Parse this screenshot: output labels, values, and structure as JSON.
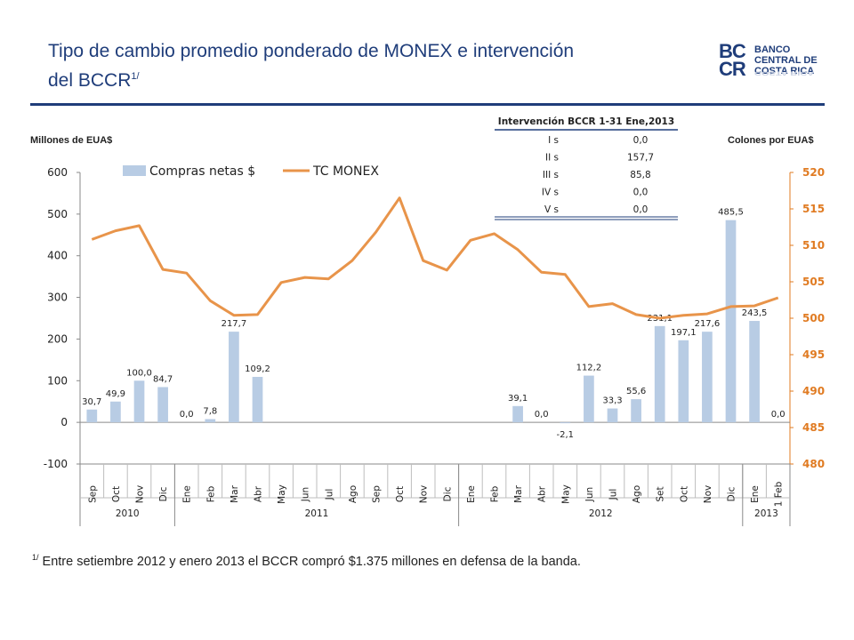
{
  "title": {
    "line1": "Tipo de cambio promedio ponderado de MONEX e intervención",
    "line2": "del BCCR",
    "sup": "1/"
  },
  "logo": {
    "mark1": "BC",
    "mark2": "CR",
    "line1": "BANCO",
    "line2": "CENTRAL DE",
    "line3": "COSTA RICA"
  },
  "left_axis_title": "Millones de EUA$",
  "right_axis_title": "Colones por EUA$",
  "intervention_table": {
    "title": "Intervención BCCR 1-31 Ene,2013",
    "rows": [
      {
        "label": "I s",
        "value": "0,0"
      },
      {
        "label": "II s",
        "value": "157,7"
      },
      {
        "label": "III s",
        "value": "85,8"
      },
      {
        "label": "IV s",
        "value": "0,0"
      },
      {
        "label": "V s",
        "value": "0,0"
      }
    ]
  },
  "footnote": {
    "sup": "1/",
    "text": "Entre setiembre 2012 y enero 2013 el BCCR compró $1.375 millones en defensa de la banda."
  },
  "colors": {
    "bars": "#b8cce4",
    "line": "#e8944a",
    "right_axis": "#e07b22",
    "title": "#1f3d7a"
  },
  "chart_data": {
    "type": "bar+line",
    "categories": [
      "Sep",
      "Oct",
      "Nov",
      "Dic",
      "Ene",
      "Feb",
      "Mar",
      "Abr",
      "May",
      "Jun",
      "Jul",
      "Ago",
      "Sep",
      "Oct",
      "Nov",
      "Dic",
      "Ene",
      "Feb",
      "Mar",
      "Abr",
      "May",
      "Jun",
      "Jul",
      "Ago",
      "Set",
      "Oct",
      "Nov",
      "Dic",
      "Ene",
      "1 Feb"
    ],
    "year_groups": [
      {
        "label": "2010",
        "count": 4
      },
      {
        "label": "2011",
        "count": 12
      },
      {
        "label": "2012",
        "count": 12
      },
      {
        "label": "2013",
        "count": 2
      }
    ],
    "series": [
      {
        "name": "Compras netas $",
        "type": "bar",
        "axis": "left",
        "values": [
          30.7,
          49.9,
          100.0,
          84.7,
          0.0,
          7.8,
          217.7,
          109.2,
          null,
          null,
          null,
          null,
          null,
          null,
          null,
          null,
          null,
          null,
          39.1,
          0.0,
          -2.1,
          112.2,
          33.3,
          55.6,
          231.1,
          197.1,
          217.6,
          485.5,
          243.5,
          0.0
        ],
        "labels": [
          "30,7",
          "49,9",
          "100,0",
          "84,7",
          "0,0",
          "7,8",
          "217,7",
          "109,2",
          "",
          "",
          "",
          "",
          "",
          "",
          "",
          "",
          "",
          "",
          "39,1",
          "0,0",
          "-2,1",
          "112,2",
          "33,3",
          "55,6",
          "231,1",
          "197,1",
          "217,6",
          "485,5",
          "243,5",
          "0,0"
        ]
      },
      {
        "name": "TC MONEX",
        "type": "line",
        "axis": "right",
        "values": [
          510.8,
          512.0,
          512.7,
          506.7,
          506.2,
          502.4,
          500.4,
          500.5,
          504.9,
          505.6,
          505.4,
          507.9,
          511.8,
          516.5,
          507.9,
          506.6,
          510.7,
          511.6,
          509.4,
          506.3,
          506.0,
          501.6,
          502.0,
          500.5,
          500.0,
          500.4,
          500.6,
          501.6,
          501.7,
          502.8
        ]
      }
    ],
    "y_left": {
      "min": -100,
      "max": 600,
      "ticks": [
        "-100",
        "0",
        "100",
        "200",
        "300",
        "400",
        "500",
        "600"
      ]
    },
    "y_right": {
      "min": 480,
      "max": 520,
      "ticks": [
        "480",
        "485",
        "490",
        "495",
        "500",
        "505",
        "510",
        "515",
        "520"
      ]
    },
    "legend": [
      "Compras netas $",
      "TC MONEX"
    ],
    "legend_position": "top-left",
    "grid": false
  }
}
